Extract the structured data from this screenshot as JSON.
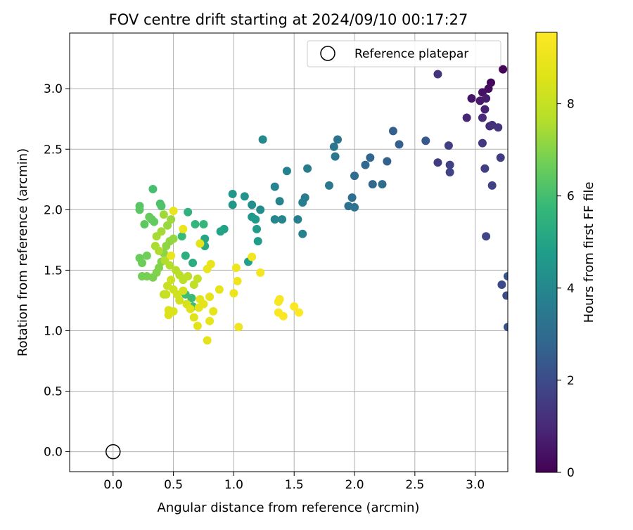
{
  "chart_data": {
    "type": "scatter",
    "title": "FOV centre drift starting at 2024/09/10 00:17:27",
    "xlabel": "Angular distance from reference (arcmin)",
    "ylabel": "Rotation from reference (arcmin)",
    "xlim": [
      -0.36,
      3.27
    ],
    "ylim": [
      -0.165,
      3.46
    ],
    "xticks": [
      0.0,
      0.5,
      1.0,
      1.5,
      2.0,
      2.5,
      3.0
    ],
    "xtick_labels": [
      "0.0",
      "0.5",
      "1.0",
      "1.5",
      "2.0",
      "2.5",
      "3.0"
    ],
    "yticks": [
      0.0,
      0.5,
      1.0,
      1.5,
      2.0,
      2.5,
      3.0
    ],
    "ytick_labels": [
      "0.0",
      "0.5",
      "1.0",
      "1.5",
      "2.0",
      "2.5",
      "3.0"
    ],
    "grid": true,
    "legend": {
      "placement": "top-right",
      "entries": [
        "Reference platepar"
      ]
    },
    "colorbar": {
      "label": "Hours from first FF file",
      "colormap": "viridis",
      "range": [
        0,
        9.55
      ],
      "ticks": [
        0,
        2,
        4,
        6,
        8
      ],
      "tick_labels": [
        "0",
        "2",
        "4",
        "6",
        "8"
      ]
    },
    "reference_point": {
      "x": 0.0,
      "y": 0.0
    },
    "points": [
      [
        3.23,
        3.16,
        0.1
      ],
      [
        3.13,
        3.05,
        0.2
      ],
      [
        3.11,
        3.0,
        0.3
      ],
      [
        3.06,
        2.97,
        0.4
      ],
      [
        2.97,
        2.92,
        0.5
      ],
      [
        3.04,
        2.9,
        0.6
      ],
      [
        3.09,
        2.92,
        0.7
      ],
      [
        3.08,
        2.83,
        0.8
      ],
      [
        2.93,
        2.76,
        0.9
      ],
      [
        3.06,
        2.76,
        1.0
      ],
      [
        3.12,
        2.69,
        1.1
      ],
      [
        3.14,
        2.7,
        1.2
      ],
      [
        3.19,
        2.68,
        1.3
      ],
      [
        3.06,
        2.55,
        1.4
      ],
      [
        3.21,
        2.43,
        1.5
      ],
      [
        3.08,
        2.34,
        1.6
      ],
      [
        3.14,
        2.2,
        1.7
      ],
      [
        3.09,
        1.78,
        1.8
      ],
      [
        3.22,
        1.38,
        1.9
      ],
      [
        3.26,
        1.29,
        2.0
      ],
      [
        3.27,
        1.03,
        2.1
      ],
      [
        3.27,
        1.45,
        2.2
      ],
      [
        2.69,
        3.12,
        1.3
      ],
      [
        2.69,
        2.39,
        1.5
      ],
      [
        2.78,
        2.53,
        1.6
      ],
      [
        2.79,
        2.37,
        1.7
      ],
      [
        2.79,
        2.31,
        1.75
      ],
      [
        2.59,
        2.57,
        2.4
      ],
      [
        2.32,
        2.65,
        2.6
      ],
      [
        2.37,
        2.54,
        2.65
      ],
      [
        2.27,
        2.4,
        2.7
      ],
      [
        2.13,
        2.43,
        2.8
      ],
      [
        2.15,
        2.21,
        2.9
      ],
      [
        2.23,
        2.21,
        3.0
      ],
      [
        2.09,
        2.37,
        2.85
      ],
      [
        2.0,
        2.28,
        3.0
      ],
      [
        1.98,
        2.1,
        3.1
      ],
      [
        1.95,
        2.03,
        3.2
      ],
      [
        2.0,
        2.02,
        3.25
      ],
      [
        1.86,
        2.58,
        3.3
      ],
      [
        1.83,
        2.52,
        3.35
      ],
      [
        1.84,
        2.44,
        3.4
      ],
      [
        1.79,
        2.2,
        3.5
      ],
      [
        1.61,
        2.34,
        3.55
      ],
      [
        1.59,
        2.1,
        3.6
      ],
      [
        1.57,
        2.06,
        3.65
      ],
      [
        1.53,
        1.92,
        3.7
      ],
      [
        1.57,
        1.8,
        3.75
      ],
      [
        1.44,
        2.32,
        3.8
      ],
      [
        1.38,
        2.07,
        3.85
      ],
      [
        1.34,
        2.19,
        3.9
      ],
      [
        1.34,
        1.92,
        3.95
      ],
      [
        1.4,
        1.92,
        4.0
      ],
      [
        1.24,
        2.58,
        4.1
      ],
      [
        1.22,
        2.0,
        4.2
      ],
      [
        1.15,
        2.04,
        4.3
      ],
      [
        1.09,
        2.11,
        4.4
      ],
      [
        0.99,
        2.13,
        4.5
      ],
      [
        0.99,
        2.04,
        4.55
      ],
      [
        1.15,
        1.94,
        4.6
      ],
      [
        1.18,
        1.92,
        4.65
      ],
      [
        1.19,
        1.84,
        4.7
      ],
      [
        1.2,
        1.74,
        4.75
      ],
      [
        1.12,
        1.57,
        4.8
      ],
      [
        0.92,
        1.84,
        4.9
      ],
      [
        0.89,
        1.82,
        5.0
      ],
      [
        0.76,
        1.76,
        5.1
      ],
      [
        0.76,
        1.7,
        5.2
      ],
      [
        0.66,
        1.56,
        5.3
      ],
      [
        0.6,
        1.62,
        5.4
      ],
      [
        0.62,
        1.98,
        5.5
      ],
      [
        0.68,
        1.88,
        5.6
      ],
      [
        0.75,
        1.88,
        5.7
      ],
      [
        0.57,
        1.78,
        5.8
      ],
      [
        0.65,
        1.27,
        5.85
      ],
      [
        0.6,
        1.3,
        5.9
      ],
      [
        0.66,
        1.2,
        5.95
      ],
      [
        0.33,
        2.17,
        6.0
      ],
      [
        0.39,
        2.05,
        6.1
      ],
      [
        0.4,
        2.03,
        6.2
      ],
      [
        0.22,
        2.03,
        6.3
      ],
      [
        0.22,
        2.0,
        6.35
      ],
      [
        0.26,
        1.88,
        6.4
      ],
      [
        0.32,
        1.92,
        6.45
      ],
      [
        0.34,
        1.9,
        6.5
      ],
      [
        0.3,
        1.94,
        6.55
      ],
      [
        0.22,
        1.6,
        6.6
      ],
      [
        0.24,
        1.56,
        6.65
      ],
      [
        0.28,
        1.62,
        6.7
      ],
      [
        0.24,
        1.45,
        6.75
      ],
      [
        0.28,
        1.45,
        6.8
      ],
      [
        0.33,
        1.44,
        6.85
      ],
      [
        0.36,
        1.48,
        6.9
      ],
      [
        0.38,
        1.52,
        6.95
      ],
      [
        0.4,
        1.57,
        7.0
      ],
      [
        0.42,
        1.64,
        7.05
      ],
      [
        0.44,
        1.7,
        7.1
      ],
      [
        0.47,
        1.74,
        7.15
      ],
      [
        0.5,
        1.76,
        7.2
      ],
      [
        0.45,
        1.87,
        7.25
      ],
      [
        0.48,
        1.92,
        7.3
      ],
      [
        0.42,
        1.96,
        7.35
      ],
      [
        0.4,
        1.82,
        7.4
      ],
      [
        0.36,
        1.78,
        7.45
      ],
      [
        0.35,
        1.7,
        7.5
      ],
      [
        0.38,
        1.66,
        7.55
      ],
      [
        0.43,
        1.58,
        7.6
      ],
      [
        0.47,
        1.54,
        7.65
      ],
      [
        0.52,
        1.5,
        7.7
      ],
      [
        0.55,
        1.46,
        7.75
      ],
      [
        0.58,
        1.42,
        7.8
      ],
      [
        0.62,
        1.45,
        7.85
      ],
      [
        0.67,
        1.38,
        7.9
      ],
      [
        0.7,
        1.43,
        7.95
      ],
      [
        0.42,
        1.3,
        8.0
      ],
      [
        0.44,
        1.3,
        8.05
      ],
      [
        0.45,
        1.37,
        8.1
      ],
      [
        0.48,
        1.42,
        8.15
      ],
      [
        0.5,
        1.34,
        8.2
      ],
      [
        0.53,
        1.3,
        8.25
      ],
      [
        0.55,
        1.25,
        8.3
      ],
      [
        0.58,
        1.33,
        8.35
      ],
      [
        0.61,
        1.22,
        8.4
      ],
      [
        0.46,
        1.13,
        8.45
      ],
      [
        0.5,
        1.16,
        8.5
      ],
      [
        0.46,
        1.17,
        8.55
      ],
      [
        0.64,
        1.18,
        8.6
      ],
      [
        0.67,
        1.11,
        8.65
      ],
      [
        0.7,
        1.04,
        8.7
      ],
      [
        0.71,
        1.19,
        8.72
      ],
      [
        0.72,
        1.26,
        8.74
      ],
      [
        0.72,
        1.72,
        8.76
      ],
      [
        0.75,
        1.22,
        8.78
      ],
      [
        0.78,
        0.92,
        8.8
      ],
      [
        0.8,
        1.08,
        8.82
      ],
      [
        0.83,
        1.16,
        8.84
      ],
      [
        0.88,
        1.34,
        8.86
      ],
      [
        0.8,
        1.28,
        8.88
      ],
      [
        0.78,
        1.51,
        8.9
      ],
      [
        0.81,
        1.55,
        8.92
      ],
      [
        0.5,
        1.99,
        8.94
      ],
      [
        0.58,
        1.84,
        8.96
      ],
      [
        0.48,
        1.62,
        8.98
      ],
      [
        1.0,
        1.31,
        9.0
      ],
      [
        1.02,
        1.52,
        9.05
      ],
      [
        1.03,
        1.41,
        9.1
      ],
      [
        1.04,
        1.03,
        9.15
      ],
      [
        1.15,
        1.61,
        9.2
      ],
      [
        1.22,
        1.48,
        9.25
      ],
      [
        1.37,
        1.24,
        9.3
      ],
      [
        1.38,
        1.26,
        9.35
      ],
      [
        1.37,
        1.15,
        9.4
      ],
      [
        1.41,
        1.12,
        9.45
      ],
      [
        1.5,
        1.2,
        9.5
      ],
      [
        1.54,
        1.15,
        9.55
      ]
    ]
  }
}
